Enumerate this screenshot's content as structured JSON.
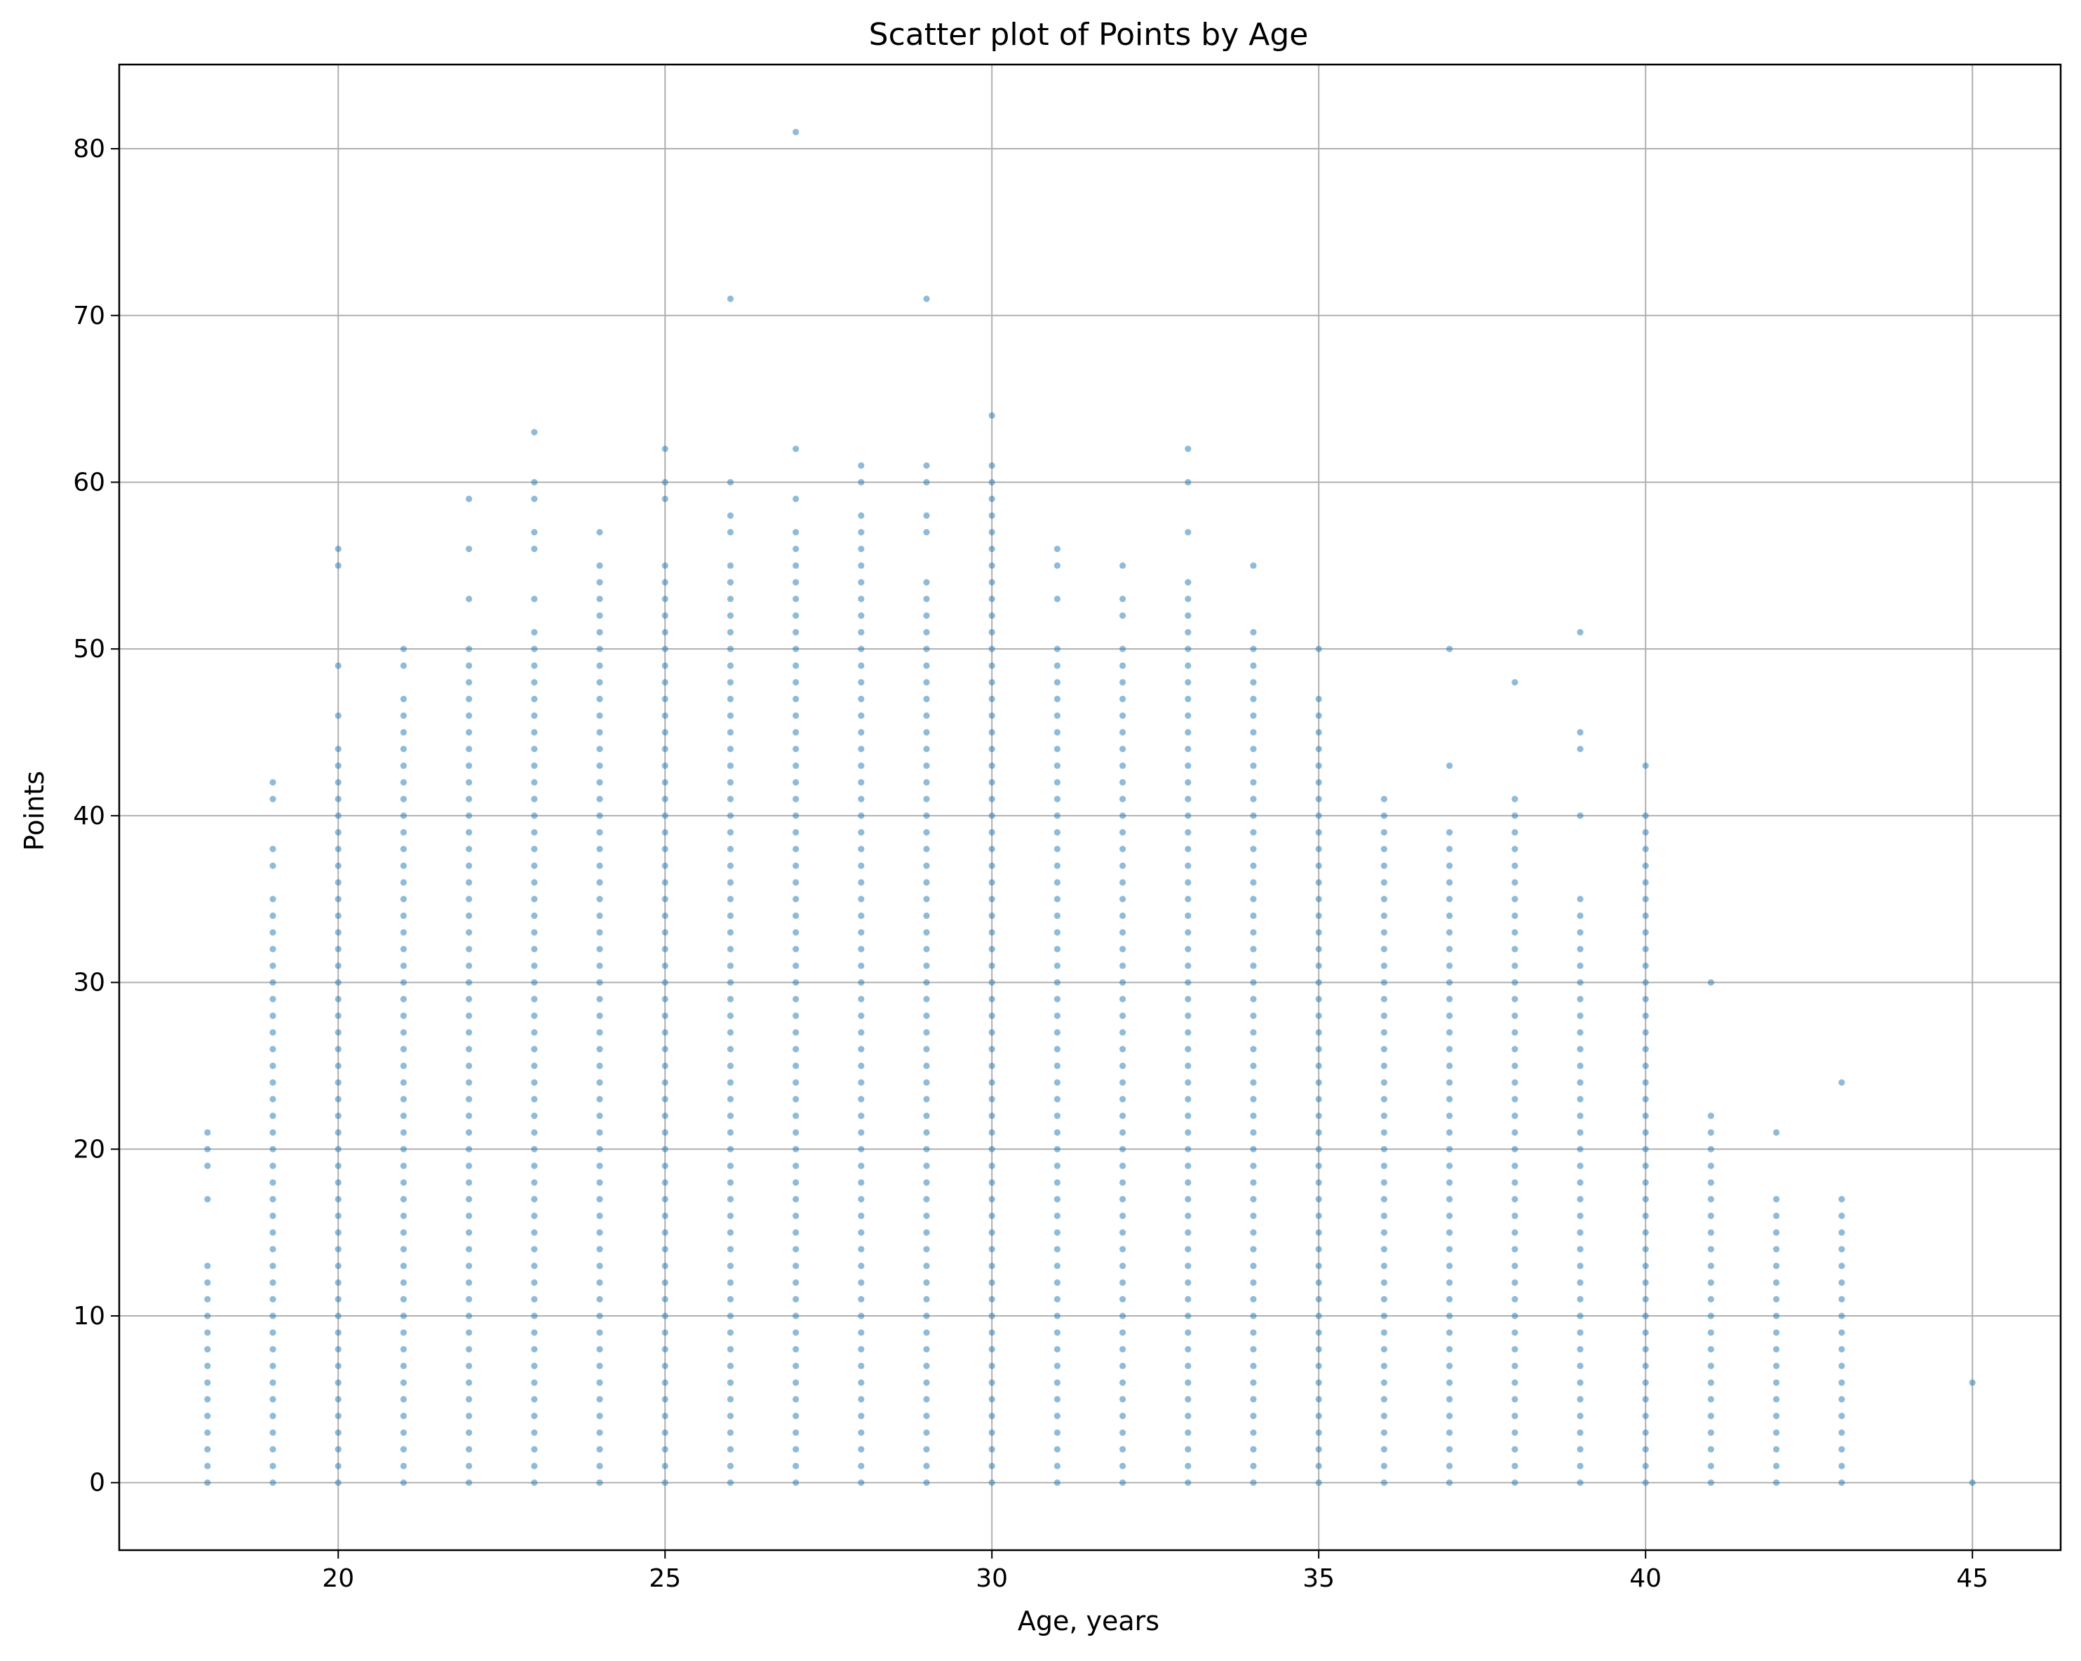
{
  "chart_data": {
    "type": "scatter",
    "title": "Scatter plot of Points by Age",
    "xlabel": "Age, years",
    "ylabel": "Points",
    "xlim": [
      16.65,
      46.35
    ],
    "ylim": [
      -4.05,
      85.05
    ],
    "xticks": [
      20,
      25,
      30,
      35,
      40,
      45
    ],
    "yticks": [
      0,
      10,
      20,
      30,
      40,
      50,
      60,
      70,
      80
    ],
    "grid": true,
    "marker_color": "#1f77b4",
    "marker_alpha": 0.5,
    "columns": [
      {
        "x": 18,
        "ymax": 13,
        "extra": [
          17,
          19,
          20,
          21
        ]
      },
      {
        "x": 19,
        "ymax": 35,
        "extra": [
          37,
          38,
          41,
          42
        ]
      },
      {
        "x": 20,
        "ymax": 44,
        "extra": [
          46,
          49,
          55,
          56
        ]
      },
      {
        "x": 21,
        "ymax": 47,
        "extra": [
          49,
          50
        ]
      },
      {
        "x": 22,
        "ymax": 50,
        "extra": [
          53,
          56,
          59
        ]
      },
      {
        "x": 23,
        "ymax": 51,
        "extra": [
          53,
          56,
          57,
          59,
          60,
          63
        ]
      },
      {
        "x": 24,
        "ymax": 52,
        "extra": [
          53,
          54,
          55,
          57
        ]
      },
      {
        "x": 25,
        "ymax": 55,
        "extra": [
          59,
          60,
          62
        ]
      },
      {
        "x": 26,
        "ymax": 55,
        "extra": [
          57,
          58,
          60,
          71
        ]
      },
      {
        "x": 27,
        "ymax": 57,
        "extra": [
          59,
          62,
          81
        ]
      },
      {
        "x": 28,
        "ymax": 57,
        "extra": [
          58,
          60,
          61
        ]
      },
      {
        "x": 29,
        "ymax": 54,
        "extra": [
          57,
          58,
          60,
          61,
          71
        ]
      },
      {
        "x": 30,
        "ymax": 61,
        "extra": [
          64
        ]
      },
      {
        "x": 31,
        "ymax": 50,
        "extra": [
          53,
          55,
          56
        ]
      },
      {
        "x": 32,
        "ymax": 50,
        "extra": [
          52,
          53,
          55
        ]
      },
      {
        "x": 33,
        "ymax": 54,
        "extra": [
          57,
          60,
          62
        ]
      },
      {
        "x": 34,
        "ymax": 51,
        "extra": [
          55
        ]
      },
      {
        "x": 35,
        "ymax": 47,
        "extra": [
          50
        ]
      },
      {
        "x": 36,
        "ymax": 41,
        "extra": []
      },
      {
        "x": 37,
        "ymax": 39,
        "extra": [
          43,
          50
        ]
      },
      {
        "x": 38,
        "ymax": 41,
        "extra": [
          48
        ]
      },
      {
        "x": 39,
        "ymax": 35,
        "extra": [
          40,
          44,
          45,
          51
        ]
      },
      {
        "x": 40,
        "ymax": 40,
        "extra": [
          43
        ]
      },
      {
        "x": 41,
        "ymax": 22,
        "extra": [
          30
        ]
      },
      {
        "x": 42,
        "ymax": 17,
        "extra": [
          21
        ]
      },
      {
        "x": 43,
        "ymax": 17,
        "extra": [
          24
        ]
      },
      {
        "x": 45,
        "ymax": 0,
        "extra": [
          6
        ]
      }
    ]
  }
}
